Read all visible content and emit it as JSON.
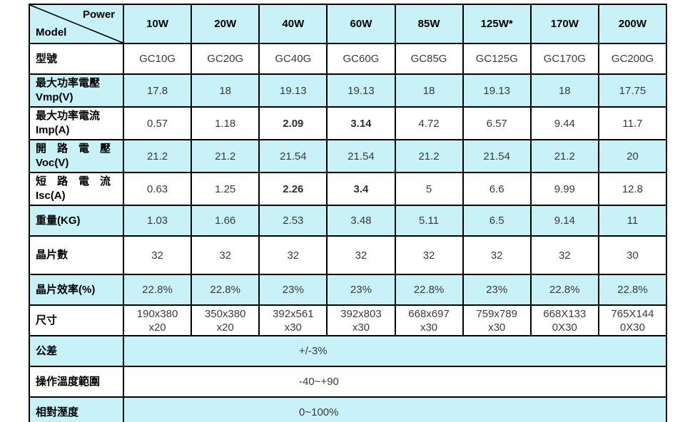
{
  "table": {
    "corner": {
      "power": "Power",
      "model": "Model"
    },
    "columns": [
      "10W",
      "20W",
      "40W",
      "60W",
      "85W",
      "125W*",
      "170W",
      "200W"
    ],
    "rows": [
      {
        "id": "model-number",
        "label": "型號",
        "shaded": false,
        "values": [
          "GC10G",
          "GC20G",
          "GC40G",
          "GC60G",
          "GC85G",
          "GC125G",
          "GC170G",
          "GC200G"
        ]
      },
      {
        "id": "max-power-voltage",
        "label": "最大功率電壓\nVmp(V)",
        "shaded": true,
        "values": [
          "17.8",
          "18",
          "19.13",
          "19.13",
          "18",
          "19.13",
          "18",
          "17.75"
        ]
      },
      {
        "id": "max-power-current",
        "label": "最大功率電流\nImp(A)",
        "shaded": false,
        "bold_cols": [
          2,
          3
        ],
        "values": [
          "0.57",
          "1.18",
          "2.09",
          "3.14",
          "4.72",
          "6.57",
          "9.44",
          "11.7"
        ]
      },
      {
        "id": "open-circuit-voltage",
        "label": "開　路　電　壓\nVoc(V)",
        "shaded": true,
        "values": [
          "21.2",
          "21.2",
          "21.54",
          "21.54",
          "21.2",
          "21.54",
          "21.2",
          "20"
        ]
      },
      {
        "id": "short-circuit-current",
        "label": "短　路　電　流\nIsc(A)",
        "shaded": false,
        "bold_cols": [
          2,
          3
        ],
        "values": [
          "0.63",
          "1.25",
          "2.26",
          "3.4",
          "5",
          "6.6",
          "9.99",
          "12.8"
        ]
      },
      {
        "id": "weight",
        "label": "重量(KG)",
        "shaded": true,
        "values": [
          "1.03",
          "1.66",
          "2.53",
          "3.48",
          "5.11",
          "6.5",
          "9.14",
          "11"
        ]
      },
      {
        "id": "cell-count",
        "label": "晶片數",
        "shaded": false,
        "tall": true,
        "values": [
          "32",
          "32",
          "32",
          "32",
          "32",
          "32",
          "32",
          "30"
        ]
      },
      {
        "id": "cell-efficiency",
        "label": "晶片效率(%)",
        "shaded": true,
        "values": [
          "22.8%",
          "22.8%",
          "23%",
          "23%",
          "22.8%",
          "23%",
          "22.8%",
          "22.8%"
        ]
      },
      {
        "id": "dimensions",
        "label": "尺寸",
        "shaded": false,
        "values": [
          "190x380\nx20",
          "350x380\nx20",
          "392x561\nx30",
          "392x803\nx30",
          "668x697\nx30",
          "759x789\nx30",
          "668X133\n0X30",
          "765X144\n0X30"
        ]
      },
      {
        "id": "tolerance",
        "label": "公差",
        "shaded": true,
        "merged_value": "+/-3%"
      },
      {
        "id": "operating-temperature",
        "label": "操作溫度範圍",
        "shaded": false,
        "merged_value": "-40~+90"
      },
      {
        "id": "relative-humidity",
        "label": "相對溼度",
        "shaded": true,
        "merged_value": "0~100%"
      }
    ],
    "colors": {
      "shade": "#c8f2f8",
      "border": "#000000",
      "value_text": "#3a3a3a",
      "label_text": "#000000"
    }
  }
}
